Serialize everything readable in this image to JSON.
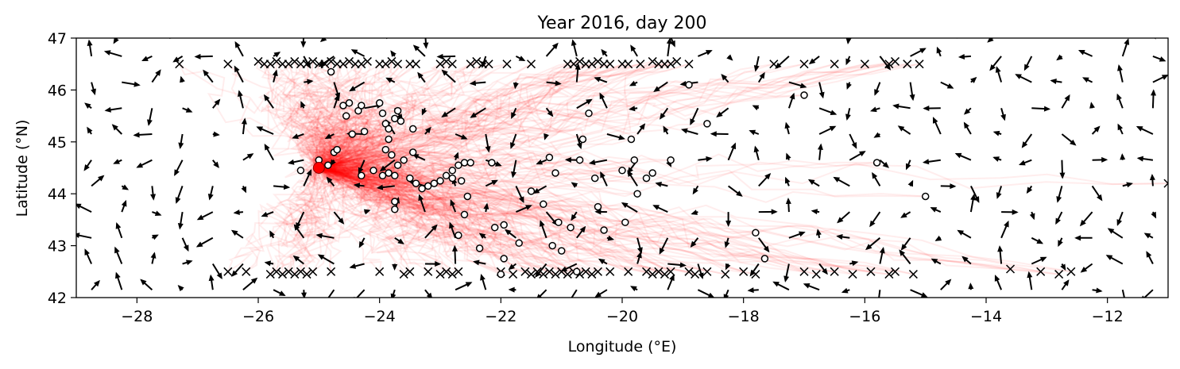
{
  "chart_data": {
    "type": "scatter",
    "title": "Year 2016, day 200",
    "xlabel": "Longitude (°E)",
    "ylabel": "Latitude (°N)",
    "xlim": [
      -29,
      -11
    ],
    "ylim": [
      42,
      47
    ],
    "xticks": [
      -28,
      -26,
      -24,
      -22,
      -20,
      -18,
      -16,
      -14,
      -12
    ],
    "yticks": [
      42,
      43,
      44,
      45,
      46,
      47
    ],
    "xtick_labels": [
      "−28",
      "−26",
      "−24",
      "−22",
      "−20",
      "−18",
      "−16",
      "−14",
      "−12"
    ],
    "ytick_labels": [
      "42",
      "43",
      "44",
      "45",
      "46",
      "47"
    ],
    "grid": false,
    "colors": {
      "release_marker": "#ff0000",
      "trajectories": "#ff0000",
      "quiver": "#000000",
      "particles_face": "#ffffff",
      "particles_edge": "#000000",
      "exited": "#000000"
    },
    "release_point": {
      "x": -25.0,
      "y": 44.5
    },
    "particles": {
      "name": "",
      "points": [
        [
          -25.3,
          44.45
        ],
        [
          -25.0,
          44.65
        ],
        [
          -24.85,
          44.55
        ],
        [
          -24.75,
          44.8
        ],
        [
          -24.7,
          44.85
        ],
        [
          -24.8,
          46.35
        ],
        [
          -24.6,
          45.7
        ],
        [
          -24.55,
          45.5
        ],
        [
          -24.5,
          45.75
        ],
        [
          -24.45,
          45.15
        ],
        [
          -24.35,
          45.6
        ],
        [
          -24.3,
          45.7
        ],
        [
          -24.25,
          45.2
        ],
        [
          -24.3,
          44.35
        ],
        [
          -24.1,
          44.45
        ],
        [
          -24.0,
          45.75
        ],
        [
          -23.95,
          45.55
        ],
        [
          -23.9,
          45.35
        ],
        [
          -23.85,
          45.25
        ],
        [
          -23.85,
          45.05
        ],
        [
          -23.9,
          44.85
        ],
        [
          -23.8,
          44.75
        ],
        [
          -23.7,
          44.55
        ],
        [
          -23.75,
          44.35
        ],
        [
          -23.95,
          44.35
        ],
        [
          -23.85,
          44.4
        ],
        [
          -23.75,
          45.45
        ],
        [
          -23.7,
          45.6
        ],
        [
          -23.65,
          45.4
        ],
        [
          -23.45,
          45.25
        ],
        [
          -23.45,
          44.8
        ],
        [
          -23.6,
          44.65
        ],
        [
          -23.5,
          44.3
        ],
        [
          -23.4,
          44.2
        ],
        [
          -23.3,
          44.1
        ],
        [
          -23.2,
          44.15
        ],
        [
          -23.1,
          44.2
        ],
        [
          -23.0,
          44.25
        ],
        [
          -22.9,
          44.35
        ],
        [
          -22.8,
          44.45
        ],
        [
          -22.7,
          44.55
        ],
        [
          -22.6,
          44.6
        ],
        [
          -22.5,
          44.6
        ],
        [
          -22.8,
          44.3
        ],
        [
          -22.65,
          44.25
        ],
        [
          -22.55,
          43.95
        ],
        [
          -22.6,
          43.6
        ],
        [
          -22.7,
          43.2
        ],
        [
          -23.75,
          43.85
        ],
        [
          -23.75,
          43.7
        ],
        [
          -22.15,
          44.6
        ],
        [
          -22.35,
          42.95
        ],
        [
          -22.1,
          43.35
        ],
        [
          -21.95,
          43.4
        ],
        [
          -21.95,
          42.75
        ],
        [
          -22.0,
          42.45
        ],
        [
          -21.7,
          43.05
        ],
        [
          -21.5,
          44.05
        ],
        [
          -21.3,
          43.8
        ],
        [
          -21.2,
          44.7
        ],
        [
          -21.1,
          44.4
        ],
        [
          -21.05,
          43.45
        ],
        [
          -21.15,
          43.0
        ],
        [
          -21.0,
          42.9
        ],
        [
          -20.85,
          43.35
        ],
        [
          -20.75,
          42.5
        ],
        [
          -20.7,
          44.65
        ],
        [
          -20.65,
          45.05
        ],
        [
          -20.55,
          45.55
        ],
        [
          -20.45,
          44.3
        ],
        [
          -20.4,
          43.75
        ],
        [
          -20.3,
          43.3
        ],
        [
          -20.0,
          44.45
        ],
        [
          -19.85,
          45.05
        ],
        [
          -19.8,
          44.65
        ],
        [
          -19.95,
          43.45
        ],
        [
          -19.75,
          44.0
        ],
        [
          -19.6,
          44.3
        ],
        [
          -19.5,
          44.4
        ],
        [
          -19.2,
          44.65
        ],
        [
          -18.9,
          46.1
        ],
        [
          -18.6,
          45.35
        ],
        [
          -17.8,
          43.25
        ],
        [
          -17.65,
          42.75
        ],
        [
          -17.0,
          45.9
        ],
        [
          -15.8,
          44.6
        ],
        [
          -15.0,
          43.95
        ]
      ]
    },
    "exited_particles": {
      "name": "",
      "points": [
        [
          -27.3,
          46.5
        ],
        [
          -26.5,
          46.5
        ],
        [
          -26.0,
          46.55
        ],
        [
          -25.9,
          46.5
        ],
        [
          -25.8,
          46.5
        ],
        [
          -25.7,
          46.55
        ],
        [
          -25.6,
          46.5
        ],
        [
          -25.5,
          46.5
        ],
        [
          -25.4,
          46.55
        ],
        [
          -25.3,
          46.5
        ],
        [
          -25.2,
          46.5
        ],
        [
          -25.1,
          46.55
        ],
        [
          -25.0,
          46.5
        ],
        [
          -24.9,
          46.5
        ],
        [
          -24.8,
          46.55
        ],
        [
          -24.7,
          46.5
        ],
        [
          -24.6,
          46.5
        ],
        [
          -24.5,
          46.55
        ],
        [
          -24.4,
          46.5
        ],
        [
          -24.3,
          46.5
        ],
        [
          -24.2,
          46.55
        ],
        [
          -24.0,
          46.5
        ],
        [
          -23.9,
          46.5
        ],
        [
          -23.8,
          46.55
        ],
        [
          -23.7,
          46.5
        ],
        [
          -23.5,
          46.5
        ],
        [
          -23.4,
          46.5
        ],
        [
          -23.0,
          46.5
        ],
        [
          -22.9,
          46.55
        ],
        [
          -22.8,
          46.5
        ],
        [
          -22.5,
          46.5
        ],
        [
          -22.4,
          46.55
        ],
        [
          -22.3,
          46.5
        ],
        [
          -22.2,
          46.5
        ],
        [
          -21.9,
          46.5
        ],
        [
          -21.5,
          46.5
        ],
        [
          -20.9,
          46.5
        ],
        [
          -20.8,
          46.5
        ],
        [
          -20.7,
          46.55
        ],
        [
          -20.6,
          46.5
        ],
        [
          -20.5,
          46.5
        ],
        [
          -20.4,
          46.55
        ],
        [
          -20.3,
          46.5
        ],
        [
          -20.2,
          46.5
        ],
        [
          -20.0,
          46.5
        ],
        [
          -19.9,
          46.5
        ],
        [
          -19.7,
          46.5
        ],
        [
          -19.5,
          46.55
        ],
        [
          -19.4,
          46.5
        ],
        [
          -19.3,
          46.5
        ],
        [
          -19.2,
          46.5
        ],
        [
          -19.1,
          46.55
        ],
        [
          -18.9,
          46.5
        ],
        [
          -17.5,
          46.5
        ],
        [
          -17.0,
          46.5
        ],
        [
          -16.5,
          46.5
        ],
        [
          -16.0,
          46.5
        ],
        [
          -15.6,
          46.5
        ],
        [
          -15.5,
          46.55
        ],
        [
          -15.3,
          46.5
        ],
        [
          -15.1,
          46.5
        ],
        [
          -26.5,
          42.5
        ],
        [
          -26.2,
          42.5
        ],
        [
          -25.8,
          42.45
        ],
        [
          -25.7,
          42.5
        ],
        [
          -25.6,
          42.45
        ],
        [
          -25.5,
          42.5
        ],
        [
          -25.4,
          42.45
        ],
        [
          -25.3,
          42.5
        ],
        [
          -25.2,
          42.45
        ],
        [
          -25.1,
          42.5
        ],
        [
          -24.8,
          42.5
        ],
        [
          -24.0,
          42.5
        ],
        [
          -23.6,
          42.45
        ],
        [
          -23.5,
          42.5
        ],
        [
          -23.2,
          42.5
        ],
        [
          -23.0,
          42.45
        ],
        [
          -22.9,
          42.5
        ],
        [
          -22.8,
          42.45
        ],
        [
          -22.7,
          42.5
        ],
        [
          -22.0,
          42.5
        ],
        [
          -21.8,
          42.45
        ],
        [
          -21.6,
          42.5
        ],
        [
          -21.5,
          42.45
        ],
        [
          -21.4,
          42.5
        ],
        [
          -21.3,
          42.45
        ],
        [
          -21.2,
          42.5
        ],
        [
          -21.1,
          42.45
        ],
        [
          -21.0,
          42.5
        ],
        [
          -20.9,
          42.45
        ],
        [
          -20.8,
          42.5
        ],
        [
          -20.7,
          42.45
        ],
        [
          -20.6,
          42.5
        ],
        [
          -20.5,
          42.45
        ],
        [
          -20.4,
          42.5
        ],
        [
          -20.2,
          42.5
        ],
        [
          -19.9,
          42.5
        ],
        [
          -19.6,
          42.5
        ],
        [
          -19.5,
          42.45
        ],
        [
          -19.4,
          42.5
        ],
        [
          -19.3,
          42.45
        ],
        [
          -19.2,
          42.5
        ],
        [
          -18.9,
          42.5
        ],
        [
          -18.8,
          42.45
        ],
        [
          -18.6,
          42.5
        ],
        [
          -18.3,
          42.45
        ],
        [
          -18.0,
          42.5
        ],
        [
          -17.8,
          42.45
        ],
        [
          -17.0,
          42.5
        ],
        [
          -16.8,
          42.45
        ],
        [
          -16.5,
          42.5
        ],
        [
          -16.2,
          42.45
        ],
        [
          -15.9,
          42.5
        ],
        [
          -15.6,
          42.45
        ],
        [
          -15.5,
          42.5
        ],
        [
          -15.2,
          42.45
        ],
        [
          -13.6,
          42.55
        ],
        [
          -13.1,
          42.5
        ],
        [
          -12.8,
          42.45
        ],
        [
          -12.6,
          42.5
        ],
        [
          -11.0,
          44.2
        ]
      ]
    }
  }
}
